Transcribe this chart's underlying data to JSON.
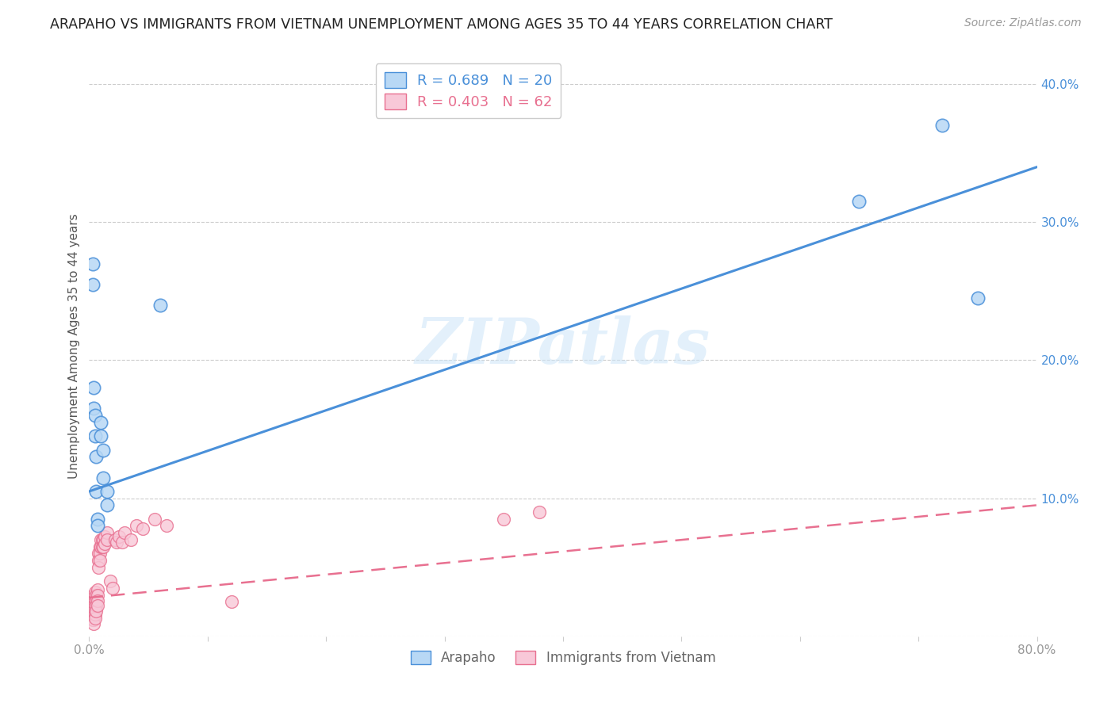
{
  "title": "ARAPAHO VS IMMIGRANTS FROM VIETNAM UNEMPLOYMENT AMONG AGES 35 TO 44 YEARS CORRELATION CHART",
  "source": "Source: ZipAtlas.com",
  "ylabel": "Unemployment Among Ages 35 to 44 years",
  "xlim": [
    0.0,
    0.8
  ],
  "ylim": [
    0.0,
    0.42
  ],
  "xticks": [
    0.0,
    0.1,
    0.2,
    0.3,
    0.4,
    0.5,
    0.6,
    0.7,
    0.8
  ],
  "yticks_right": [
    0.0,
    0.1,
    0.2,
    0.3,
    0.4
  ],
  "yticklabels_right": [
    "",
    "10.0%",
    "20.0%",
    "30.0%",
    "40.0%"
  ],
  "watermark": "ZIPatlas",
  "legend_entries": [
    {
      "label": "R = 0.689   N = 20",
      "color": "#6aaee8"
    },
    {
      "label": "R = 0.403   N = 62",
      "color": "#f080a0"
    }
  ],
  "arapaho_scatter": [
    [
      0.003,
      0.27
    ],
    [
      0.003,
      0.255
    ],
    [
      0.004,
      0.18
    ],
    [
      0.004,
      0.165
    ],
    [
      0.005,
      0.16
    ],
    [
      0.005,
      0.145
    ],
    [
      0.006,
      0.13
    ],
    [
      0.006,
      0.105
    ],
    [
      0.007,
      0.085
    ],
    [
      0.007,
      0.08
    ],
    [
      0.01,
      0.155
    ],
    [
      0.01,
      0.145
    ],
    [
      0.012,
      0.135
    ],
    [
      0.012,
      0.115
    ],
    [
      0.015,
      0.105
    ],
    [
      0.015,
      0.095
    ],
    [
      0.06,
      0.24
    ],
    [
      0.65,
      0.315
    ],
    [
      0.72,
      0.37
    ],
    [
      0.75,
      0.245
    ]
  ],
  "vietnam_scatter": [
    [
      0.002,
      0.025
    ],
    [
      0.002,
      0.022
    ],
    [
      0.002,
      0.019
    ],
    [
      0.002,
      0.016
    ],
    [
      0.003,
      0.028
    ],
    [
      0.003,
      0.024
    ],
    [
      0.003,
      0.021
    ],
    [
      0.003,
      0.018
    ],
    [
      0.003,
      0.015
    ],
    [
      0.003,
      0.012
    ],
    [
      0.004,
      0.03
    ],
    [
      0.004,
      0.026
    ],
    [
      0.004,
      0.022
    ],
    [
      0.004,
      0.018
    ],
    [
      0.004,
      0.015
    ],
    [
      0.004,
      0.012
    ],
    [
      0.004,
      0.009
    ],
    [
      0.005,
      0.032
    ],
    [
      0.005,
      0.028
    ],
    [
      0.005,
      0.024
    ],
    [
      0.005,
      0.02
    ],
    [
      0.005,
      0.016
    ],
    [
      0.005,
      0.013
    ],
    [
      0.006,
      0.03
    ],
    [
      0.006,
      0.026
    ],
    [
      0.006,
      0.022
    ],
    [
      0.006,
      0.018
    ],
    [
      0.007,
      0.034
    ],
    [
      0.007,
      0.03
    ],
    [
      0.007,
      0.026
    ],
    [
      0.007,
      0.022
    ],
    [
      0.008,
      0.06
    ],
    [
      0.008,
      0.055
    ],
    [
      0.008,
      0.05
    ],
    [
      0.009,
      0.065
    ],
    [
      0.009,
      0.06
    ],
    [
      0.009,
      0.055
    ],
    [
      0.01,
      0.07
    ],
    [
      0.01,
      0.065
    ],
    [
      0.011,
      0.07
    ],
    [
      0.011,
      0.065
    ],
    [
      0.012,
      0.07
    ],
    [
      0.012,
      0.065
    ],
    [
      0.013,
      0.072
    ],
    [
      0.013,
      0.067
    ],
    [
      0.015,
      0.075
    ],
    [
      0.015,
      0.07
    ],
    [
      0.018,
      0.04
    ],
    [
      0.02,
      0.035
    ],
    [
      0.022,
      0.07
    ],
    [
      0.023,
      0.068
    ],
    [
      0.025,
      0.072
    ],
    [
      0.028,
      0.068
    ],
    [
      0.03,
      0.075
    ],
    [
      0.035,
      0.07
    ],
    [
      0.04,
      0.08
    ],
    [
      0.045,
      0.078
    ],
    [
      0.055,
      0.085
    ],
    [
      0.065,
      0.08
    ],
    [
      0.12,
      0.025
    ],
    [
      0.35,
      0.085
    ],
    [
      0.38,
      0.09
    ]
  ],
  "arapaho_line_x": [
    0.0,
    0.8
  ],
  "arapaho_line_y": [
    0.105,
    0.34
  ],
  "vietnam_line_x": [
    0.0,
    0.8
  ],
  "vietnam_line_y": [
    0.028,
    0.095
  ],
  "arapaho_color": "#4a90d9",
  "vietnam_color": "#e87090",
  "arapaho_scatter_facecolor": "#b8d8f5",
  "vietnam_scatter_facecolor": "#f8c8d8",
  "background_color": "#ffffff",
  "grid_color": "#cccccc",
  "title_color": "#222222",
  "source_color": "#999999",
  "tick_color": "#999999",
  "ylabel_color": "#555555"
}
